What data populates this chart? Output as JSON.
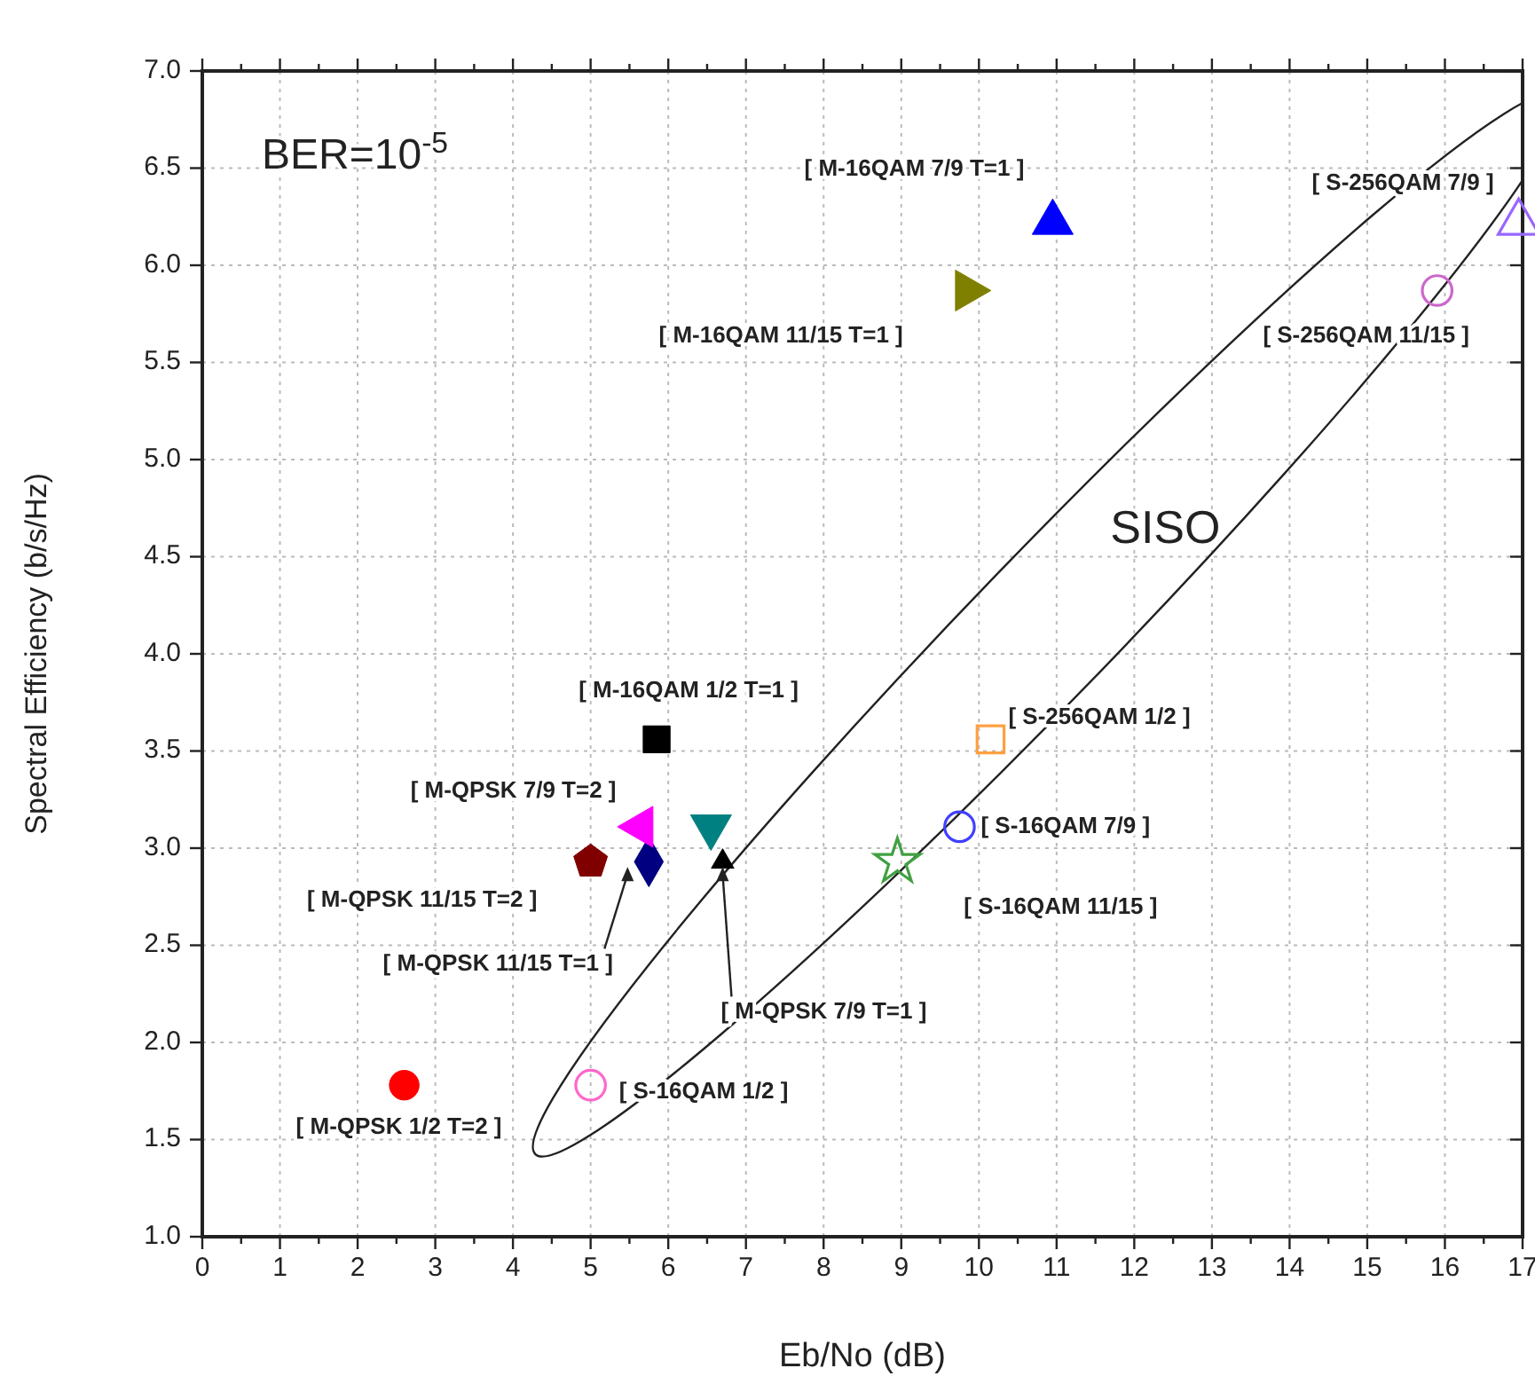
{
  "chart_data": {
    "type": "scatter",
    "xlabel": "Eb/No (dB)",
    "ylabel": "Spectral Efficiency (b/s/Hz)",
    "xlim": [
      0,
      17
    ],
    "ylim": [
      1.0,
      7.0
    ],
    "xticks": [
      0,
      {
        "value": 0.5,
        "label": null
      },
      1,
      {
        "value": 1.5,
        "label": null
      },
      2,
      {
        "value": 2.5,
        "label": null
      },
      3,
      {
        "value": 3.5,
        "label": null
      },
      4,
      {
        "value": 4.5,
        "label": null
      },
      5,
      {
        "value": 5.5,
        "label": null
      },
      6,
      {
        "value": 6.5,
        "label": null
      },
      7,
      {
        "value": 7.5,
        "label": null
      },
      8,
      {
        "value": 8.5,
        "label": null
      },
      9,
      {
        "value": 9.5,
        "label": null
      },
      10,
      {
        "value": 10.5,
        "label": null
      },
      11,
      {
        "value": 11.5,
        "label": null
      },
      12,
      {
        "value": 12.5,
        "label": null
      },
      13,
      {
        "value": 13.5,
        "label": null
      },
      14,
      {
        "value": 14.5,
        "label": null
      },
      15,
      {
        "value": 15.5,
        "label": null
      },
      16,
      {
        "value": 16.5,
        "label": null
      },
      17
    ],
    "yticks": [
      {
        "value": 1.0,
        "label": "1.0"
      },
      {
        "value": 1.5,
        "label": "1.5"
      },
      {
        "value": 2.0,
        "label": "2.0"
      },
      {
        "value": 2.5,
        "label": "2.5"
      },
      {
        "value": 3.0,
        "label": "3.0"
      },
      {
        "value": 3.5,
        "label": "3.5"
      },
      {
        "value": 4.0,
        "label": "4.0"
      },
      {
        "value": 4.5,
        "label": "4.5"
      },
      {
        "value": 5.0,
        "label": "5.0"
      },
      {
        "value": 5.5,
        "label": "5.5"
      },
      {
        "value": 6.0,
        "label": "6.0"
      },
      {
        "value": 6.5,
        "label": "6.5"
      },
      {
        "value": 7.0,
        "label": "7.0"
      }
    ],
    "grid": true,
    "series": [
      {
        "name": "[ M-QPSK 1/2 T=2 ]",
        "color": "#ff0000",
        "marker": "circle",
        "x": [
          2.6
        ],
        "values": [
          1.78
        ]
      },
      {
        "name": "[ S-16QAM 1/2 ]",
        "color": "#ff66cc",
        "marker": "circle-open",
        "x": [
          5.0
        ],
        "values": [
          1.78
        ]
      },
      {
        "name": "[ M-QPSK 11/15 T=2 ]",
        "color": "#800000",
        "x": [
          5.0
        ],
        "values": [
          2.93
        ]
      },
      {
        "name": "[ M-QPSK 11/15 T=1 ]",
        "color": "#000080",
        "marker": "diamond",
        "x": [
          5.75
        ],
        "values": [
          2.93
        ]
      },
      {
        "name": "[ M-QPSK 7/9 T=2 ]",
        "color": "#ff00ff",
        "marker": "triangle-left",
        "x": [
          5.65
        ],
        "values": [
          3.11
        ]
      },
      {
        "color": "#008080",
        "marker": "triangle-down",
        "x": [
          6.55
        ],
        "values": [
          3.11
        ]
      },
      {
        "name": "[ M-QPSK 7/9 T=1 ]",
        "color": "#000000",
        "marker": "triangle-small",
        "x": [
          6.7
        ],
        "values": [
          2.93
        ]
      },
      {
        "name": "[ M-16QAM 1/2 T=1 ]",
        "color": "#000000",
        "marker": "square",
        "x": [
          5.85
        ],
        "values": [
          3.56
        ]
      },
      {
        "name": "[ S-256QAM 1/2 ]",
        "color": "#ffa040",
        "marker": "square-open",
        "x": [
          10.15
        ],
        "values": [
          3.56
        ]
      },
      {
        "name": "[ S-16QAM 7/9 ]",
        "color": "#4040ff",
        "marker": "circle-open",
        "x": [
          9.75
        ],
        "values": [
          3.11
        ]
      },
      {
        "name": "[ S-16QAM 11/15 ]",
        "color": "#40a040",
        "marker": "star-open",
        "x": [
          8.95
        ],
        "values": [
          2.93
        ]
      },
      {
        "name": "[ M-16QAM 11/15 T=1 ]",
        "color": "#808000",
        "marker": "triangle-right",
        "x": [
          9.85
        ],
        "values": [
          5.87
        ]
      },
      {
        "name": "[ M-16QAM 7/9 T=1 ]",
        "color": "#0000ff",
        "marker": "triangle",
        "x": [
          10.95
        ],
        "values": [
          6.22
        ]
      },
      {
        "name": "[ S-256QAM 7/9 ]",
        "color": "#9966ff",
        "marker": "triangle-open",
        "x": [
          16.95
        ],
        "values": [
          6.22
        ]
      },
      {
        "name": "[ S-256QAM 11/15 ]",
        "color": "#cc66cc",
        "marker": "circle-open",
        "x": [
          15.9
        ],
        "values": [
          5.87
        ]
      }
    ],
    "annotations": [
      "BER=10$^{-5}$",
      "SISO"
    ]
  }
}
